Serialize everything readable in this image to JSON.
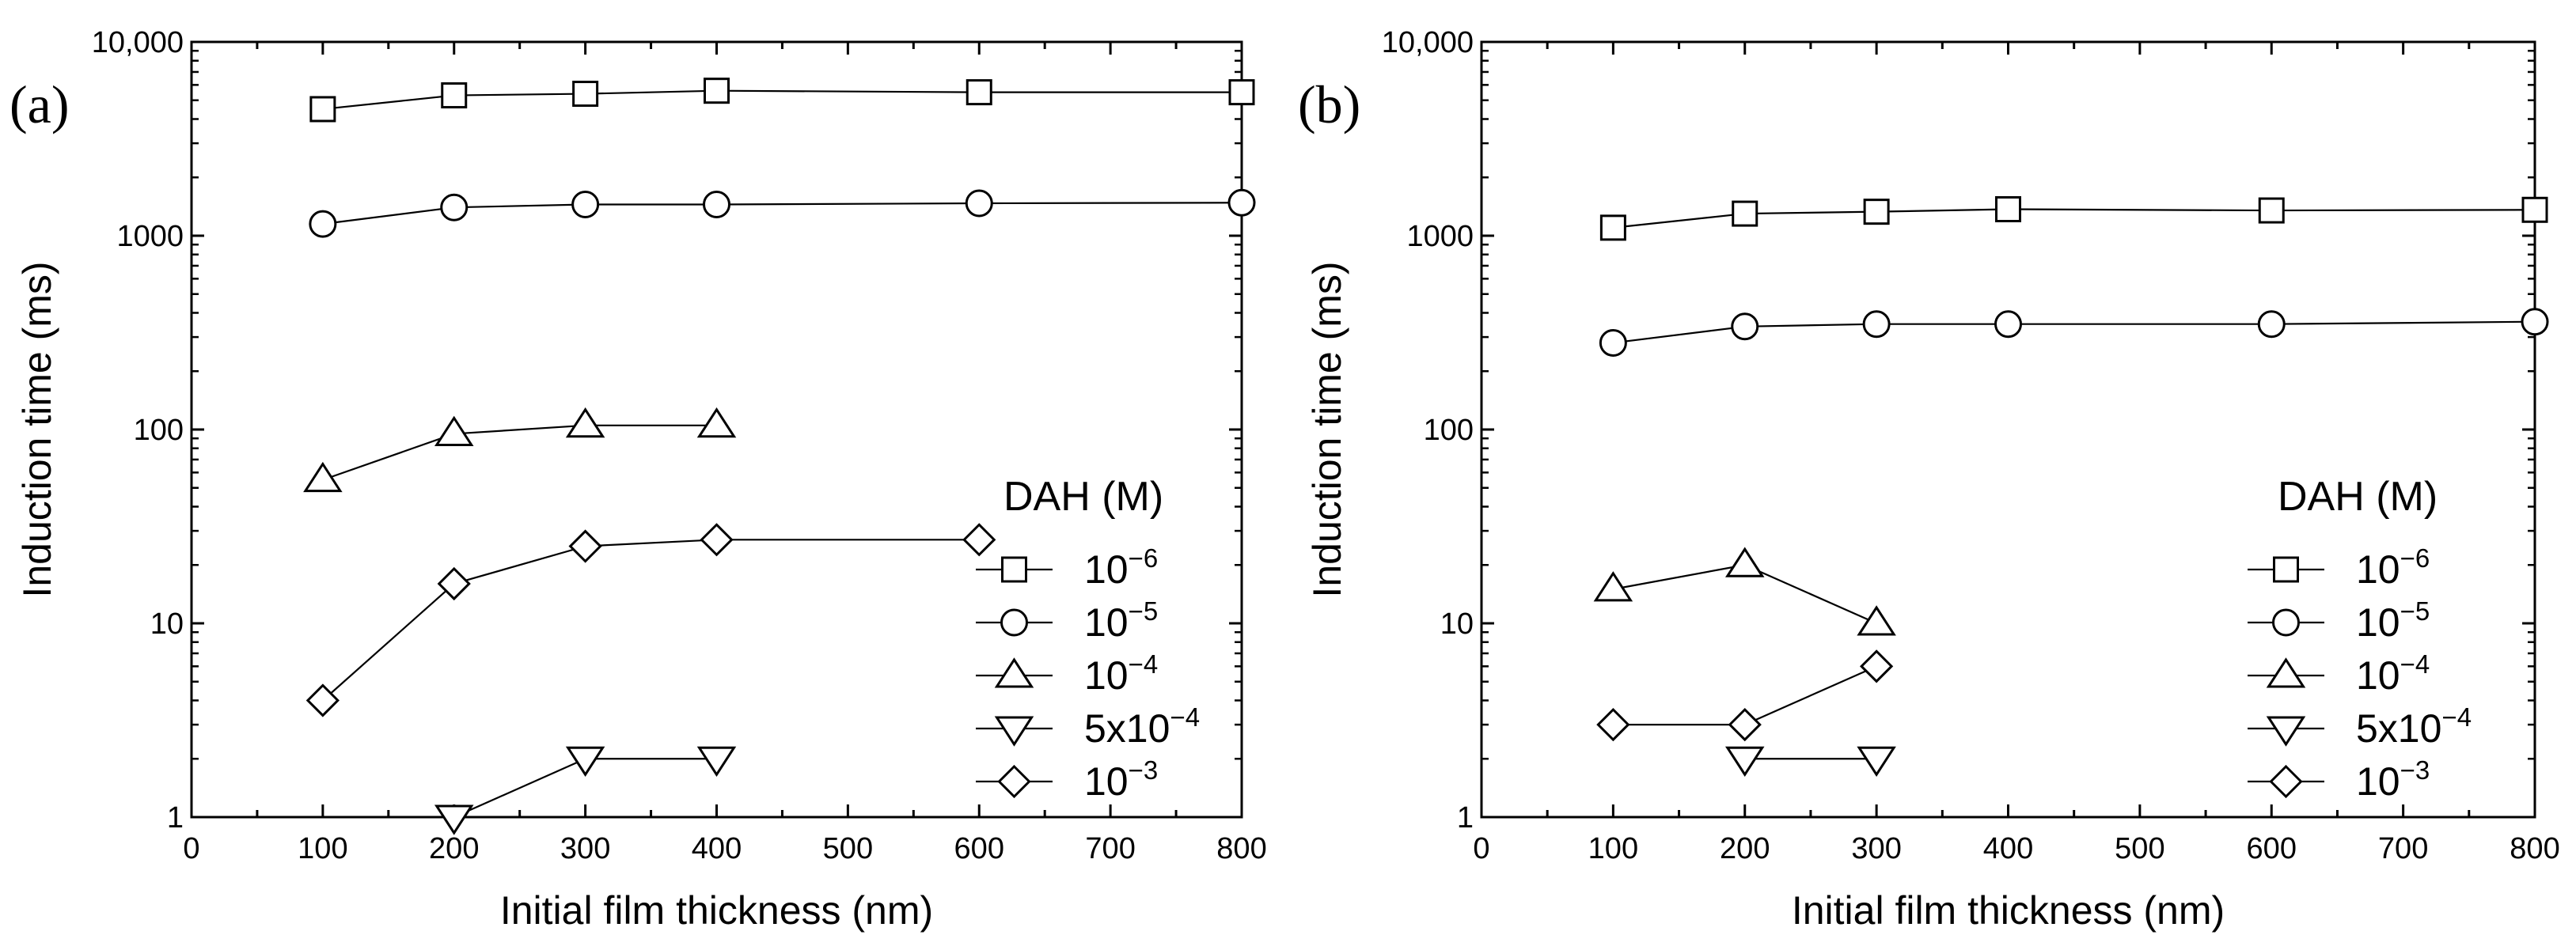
{
  "chart_data": [
    {
      "type": "line",
      "panel_label": "(a)",
      "xlabel": "Initial film thickness (nm)",
      "ylabel": "Induction time (ms)",
      "xlim": [
        0,
        800
      ],
      "ylim": [
        1,
        10000
      ],
      "yscale": "log",
      "xticks": [
        "0",
        "100",
        "200",
        "300",
        "400",
        "500",
        "600",
        "700",
        "800"
      ],
      "yticks": [
        "1",
        "10",
        "100",
        "1000",
        "10,000"
      ],
      "legend_title": "DAH (M)",
      "legend_position": "right",
      "series": [
        {
          "name": "10^-6",
          "label_base": "10",
          "label_exp": "−6",
          "marker": "square",
          "x": [
            100,
            200,
            300,
            400,
            600,
            800
          ],
          "y": [
            4500,
            5300,
            5400,
            5600,
            5500,
            5500
          ]
        },
        {
          "name": "10^-5",
          "label_base": "10",
          "label_exp": "−5",
          "marker": "circle",
          "x": [
            100,
            200,
            300,
            400,
            600,
            800
          ],
          "y": [
            1150,
            1400,
            1450,
            1450,
            1470,
            1480
          ]
        },
        {
          "name": "10^-4",
          "label_base": "10",
          "label_exp": "−4",
          "marker": "triangle-up",
          "x": [
            100,
            200,
            300,
            400
          ],
          "y": [
            55,
            95,
            105,
            105
          ]
        },
        {
          "name": "5x10^-4",
          "label_base": "5x10",
          "label_exp": "−4",
          "marker": "triangle-down",
          "x": [
            200,
            300,
            400
          ],
          "y": [
            1,
            2,
            2
          ]
        },
        {
          "name": "10^-3",
          "label_base": "10",
          "label_exp": "−3",
          "marker": "diamond",
          "x": [
            100,
            200,
            300,
            400,
            600
          ],
          "y": [
            4,
            16,
            25,
            27,
            27
          ]
        }
      ]
    },
    {
      "type": "line",
      "panel_label": "(b)",
      "xlabel": "Initial film thickness (nm)",
      "ylabel": "Induction time (ms)",
      "xlim": [
        0,
        800
      ],
      "ylim": [
        1,
        10000
      ],
      "yscale": "log",
      "xticks": [
        "0",
        "100",
        "200",
        "300",
        "400",
        "500",
        "600",
        "700",
        "800"
      ],
      "yticks": [
        "1",
        "10",
        "100",
        "1000",
        "10,000"
      ],
      "legend_title": "DAH (M)",
      "legend_position": "right",
      "series": [
        {
          "name": "10^-6",
          "label_base": "10",
          "label_exp": "−6",
          "marker": "square",
          "x": [
            100,
            200,
            300,
            400,
            600,
            800
          ],
          "y": [
            1100,
            1300,
            1330,
            1370,
            1350,
            1360
          ]
        },
        {
          "name": "10^-5",
          "label_base": "10",
          "label_exp": "−5",
          "marker": "circle",
          "x": [
            100,
            200,
            300,
            400,
            600,
            800
          ],
          "y": [
            280,
            340,
            350,
            350,
            350,
            360
          ]
        },
        {
          "name": "10^-4",
          "label_base": "10",
          "label_exp": "−4",
          "marker": "triangle-up",
          "x": [
            100,
            200,
            300
          ],
          "y": [
            15,
            20,
            10
          ]
        },
        {
          "name": "5x10^-4",
          "label_base": "5x10",
          "label_exp": "−4",
          "marker": "triangle-down",
          "x": [
            200,
            300
          ],
          "y": [
            2,
            2
          ]
        },
        {
          "name": "10^-3",
          "label_base": "10",
          "label_exp": "−3",
          "marker": "diamond",
          "x": [
            100,
            200,
            300
          ],
          "y": [
            3,
            3,
            6
          ]
        }
      ]
    }
  ]
}
